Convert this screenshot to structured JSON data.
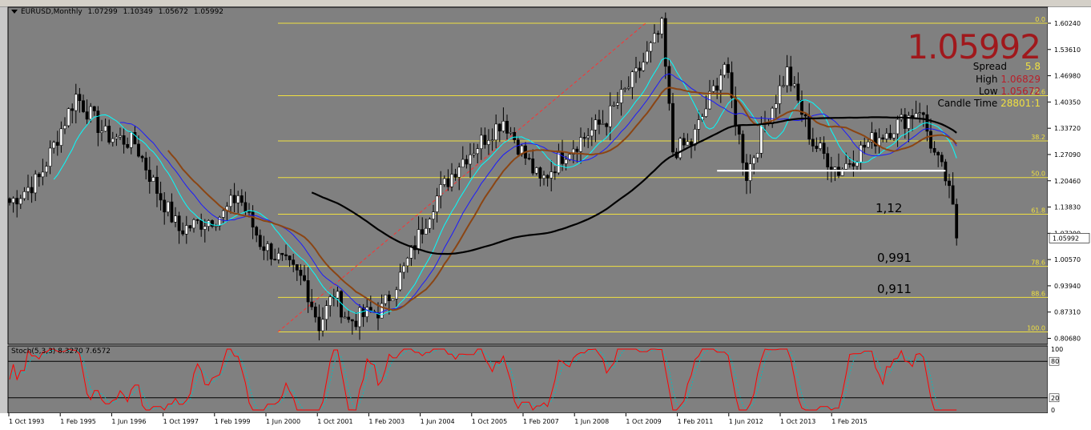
{
  "header": {
    "symbol": "EURUSD,Monthly",
    "open": "1.07299",
    "high": "1.10349",
    "low": "1.05672",
    "close": "1.05992"
  },
  "info_panel": {
    "price": "1.05992",
    "spread_label": "Spread",
    "spread_value": "5.8",
    "high_label": "High",
    "high_value": "1.06829",
    "low_label": "Low",
    "low_value": "1.05672",
    "candle_time_label": "Candle Time",
    "candle_time_value": "28801:1"
  },
  "colors": {
    "chart_bg": "#808080",
    "bull_candle": "#000000",
    "bear_candle": "#ffffff",
    "fib_lines": "#f0e040",
    "ma_cyan": "#00ffff",
    "ma_blue": "#1a1aff",
    "ma_brown": "#8b4513",
    "ma_black": "#000000",
    "ma_white": "#ffffff",
    "stoch_main": "#ff0000",
    "stoch_signal": "#00c0c0"
  },
  "annotations": [
    {
      "text": "1,12",
      "price": 1.12
    },
    {
      "text": "0,991",
      "price": 0.991
    },
    {
      "text": "0,911",
      "price": 0.911
    }
  ],
  "fib_levels": [
    {
      "label": "0.0",
      "price": 1.6025
    },
    {
      "label": "23.6",
      "price": 1.4195
    },
    {
      "label": "38.2",
      "price": 1.3052
    },
    {
      "label": "50.0",
      "price": 1.2127
    },
    {
      "label": "61.8",
      "price": 1.1203
    },
    {
      "label": "78.6",
      "price": 0.9886
    },
    {
      "label": "88.6",
      "price": 0.9102
    },
    {
      "label": "100.0",
      "price": 0.823
    }
  ],
  "price_axis": [
    "1.60240",
    "1.53610",
    "1.46980",
    "1.40350",
    "1.33720",
    "1.27090",
    "1.20460",
    "1.13830",
    "1.07200",
    "1.00570",
    "0.93940",
    "0.87310",
    "0.80680"
  ],
  "current_price_tag": "1.05992",
  "stochastic": {
    "label": "Stoch(5,3,3) 8.3270 7.6572",
    "axis": [
      "100",
      "80",
      "20",
      "0"
    ]
  },
  "time_axis": [
    "1 Oct 1993",
    "1 Feb 1995",
    "1 Jun 1996",
    "1 Oct 1997",
    "1 Feb 1999",
    "1 Jun 2000",
    "1 Oct 2001",
    "1 Feb 2003",
    "1 Jun 2004",
    "1 Oct 2005",
    "1 Feb 2007",
    "1 Jun 2008",
    "1 Oct 2009",
    "1 Feb 2011",
    "1 Jun 2012",
    "1 Oct 2013",
    "1 Feb 2015"
  ],
  "chart_data": {
    "type": "candlestick",
    "timeframe": "Monthly",
    "symbol": "EURUSD",
    "x_start": "1 Oct 1993",
    "ylim": [
      0.8068,
      1.6024
    ],
    "close_path": [
      [
        "1993-10",
        1.15
      ],
      [
        "1994-06",
        1.21
      ],
      [
        "1995-04",
        1.42
      ],
      [
        "1995-12",
        1.32
      ],
      [
        "1996-08",
        1.3
      ],
      [
        "1997-02",
        1.18
      ],
      [
        "1997-08",
        1.08
      ],
      [
        "1998-08",
        1.12
      ],
      [
        "1998-12",
        1.17
      ],
      [
        "1999-06",
        1.05
      ],
      [
        "1999-12",
        1.0
      ],
      [
        "2000-06",
        0.95
      ],
      [
        "2000-10",
        0.84
      ],
      [
        "2001-02",
        0.92
      ],
      [
        "2001-06",
        0.85
      ],
      [
        "2002-03",
        0.88
      ],
      [
        "2002-09",
        0.98
      ],
      [
        "2003-05",
        1.15
      ],
      [
        "2003-12",
        1.25
      ],
      [
        "2004-12",
        1.36
      ],
      [
        "2005-10",
        1.2
      ],
      [
        "2006-05",
        1.28
      ],
      [
        "2007-04",
        1.36
      ],
      [
        "2007-12",
        1.47
      ],
      [
        "2008-07",
        1.59
      ],
      [
        "2008-10",
        1.28
      ],
      [
        "2009-03",
        1.3
      ],
      [
        "2009-12",
        1.5
      ],
      [
        "2010-06",
        1.22
      ],
      [
        "2010-11",
        1.35
      ],
      [
        "2011-05",
        1.48
      ],
      [
        "2011-12",
        1.3
      ],
      [
        "2012-07",
        1.23
      ],
      [
        "2013-03",
        1.3
      ],
      [
        "2014-01",
        1.36
      ],
      [
        "2014-05",
        1.39
      ],
      [
        "2014-09",
        1.27
      ],
      [
        "2014-12",
        1.21
      ],
      [
        "2015-02",
        1.13
      ],
      [
        "2015-03",
        1.06
      ]
    ]
  }
}
